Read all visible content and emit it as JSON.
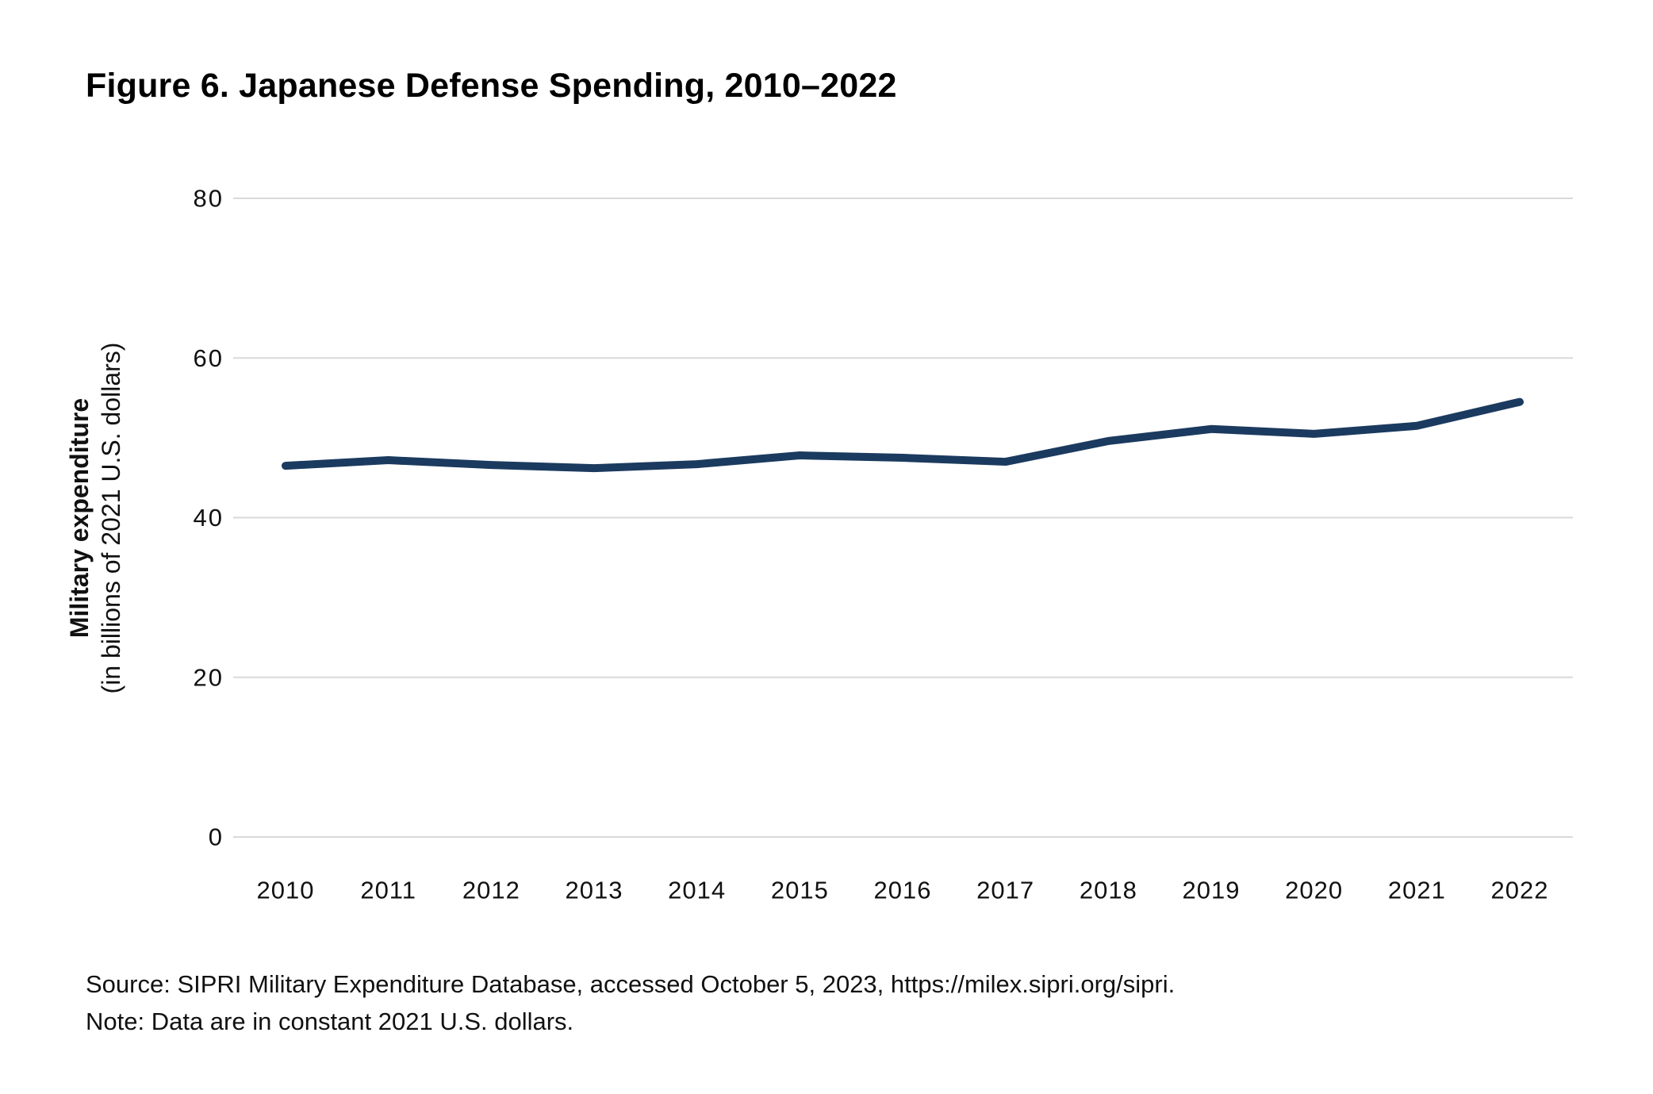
{
  "figure": {
    "title": "Figure 6. Japanese Defense Spending, 2010–2022",
    "source": "Source: SIPRI Military Expenditure Database, accessed October 5, 2023, https://milex.sipri.org/sipri.",
    "note": "Note: Data are in constant 2021 U.S. dollars."
  },
  "chart_data": {
    "type": "line",
    "title": "Figure 6. Japanese Defense Spending, 2010–2022",
    "x": [
      2010,
      2011,
      2012,
      2013,
      2014,
      2015,
      2016,
      2017,
      2018,
      2019,
      2020,
      2021,
      2022
    ],
    "series": [
      {
        "name": "Japanese military expenditure",
        "values": [
          46.5,
          47.2,
          46.6,
          46.2,
          46.7,
          47.8,
          47.5,
          47.0,
          49.6,
          51.1,
          50.5,
          51.5,
          54.5
        ]
      }
    ],
    "xlabel": "",
    "ylabel_bold": "Military expenditure",
    "ylabel_sub": "(in billions of 2021 U.S. dollars)",
    "ylim": [
      0,
      80
    ],
    "yticks": [
      0,
      20,
      40,
      60,
      80
    ],
    "grid": "horizontal",
    "legend": "none",
    "line_color": "#1b3a5f",
    "grid_color": "#d9d9d9",
    "text_color": "#111111"
  }
}
